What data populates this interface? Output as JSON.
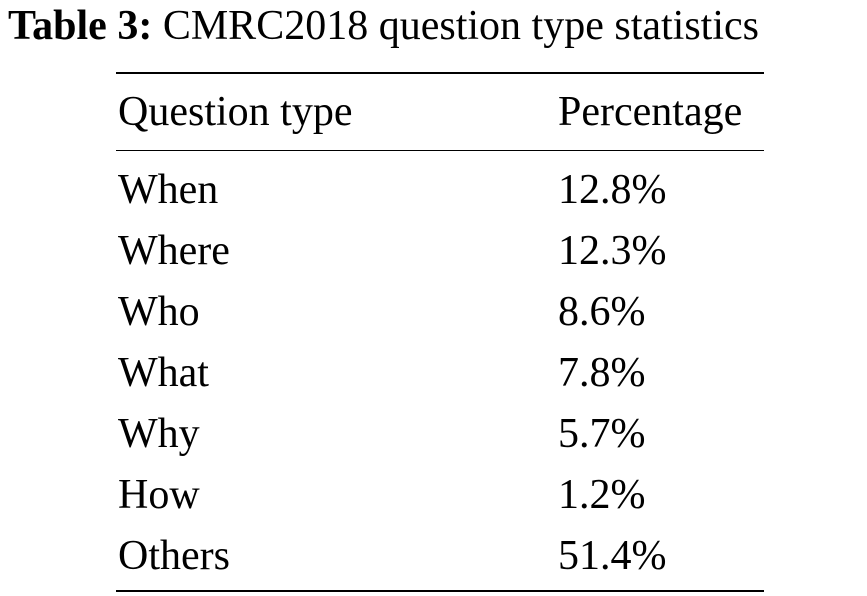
{
  "caption": {
    "label": "Table 3:",
    "text": "CMRC2018 question type statistics"
  },
  "table": {
    "headers": {
      "type": "Question type",
      "percentage": "Percentage"
    },
    "rows": [
      {
        "type": "When",
        "percentage": "12.8%"
      },
      {
        "type": "Where",
        "percentage": "12.3%"
      },
      {
        "type": "Who",
        "percentage": "8.6%"
      },
      {
        "type": "What",
        "percentage": "7.8%"
      },
      {
        "type": "Why",
        "percentage": "5.7%"
      },
      {
        "type": "How",
        "percentage": "1.2%"
      },
      {
        "type": "Others",
        "percentage": "51.4%"
      }
    ]
  }
}
